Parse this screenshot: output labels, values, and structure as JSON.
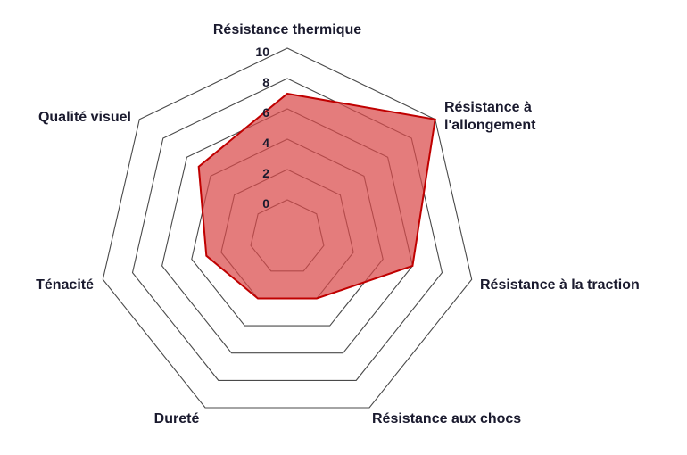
{
  "chart_data": {
    "type": "radar",
    "title": "",
    "axes": [
      "Résistance thermique",
      "Résistance à l'allongement",
      "Résistance à la traction",
      "Résistance aux chocs",
      "Dureté",
      "Ténacité",
      "Qualité visuel"
    ],
    "axis_label_lines": [
      [
        "Résistance thermique"
      ],
      [
        "Résistance à",
        "l'allongement"
      ],
      [
        "Résistance à la traction"
      ],
      [
        "Résistance aux chocs"
      ],
      [
        "Dureté"
      ],
      [
        "Ténacité"
      ],
      [
        "Qualité visuel"
      ]
    ],
    "ticks": [
      0,
      2,
      4,
      6,
      8,
      10
    ],
    "tick_labels": [
      "0",
      "2",
      "4",
      "6",
      "8",
      "10"
    ],
    "range": [
      0,
      10
    ],
    "grid": true,
    "legend": "none",
    "series": [
      {
        "values": [
          7,
          10,
          6,
          2,
          2,
          3,
          5
        ]
      }
    ],
    "colors": {
      "fill": "#d94a4a",
      "stroke": "#c00000",
      "grid": "#4a4a4a",
      "text": "#1a1a2e"
    }
  }
}
